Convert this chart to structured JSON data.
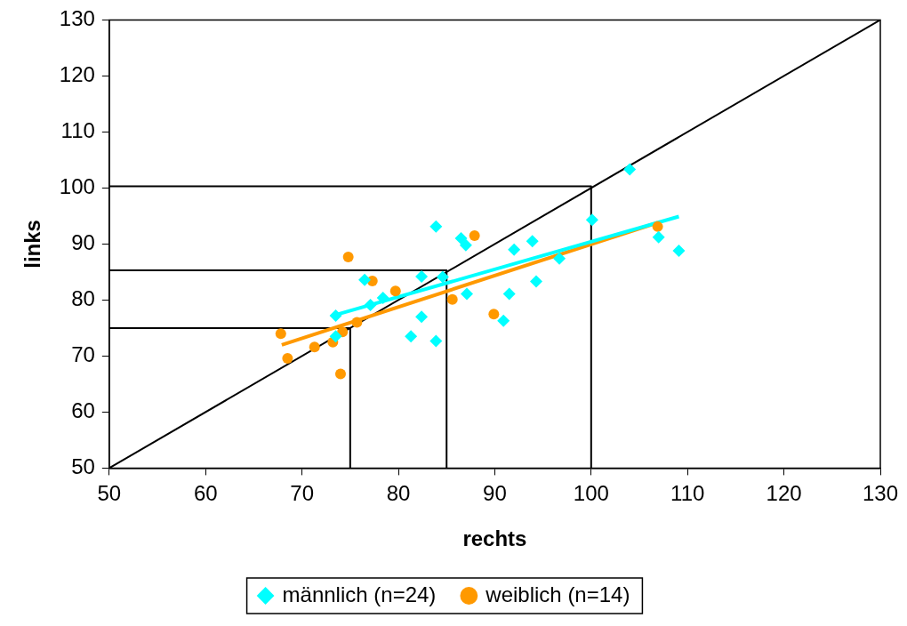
{
  "chart_data": {
    "type": "scatter",
    "xlabel": "rechts",
    "ylabel": "links",
    "xlim": [
      50,
      130
    ],
    "ylim": [
      50,
      130
    ],
    "xticks": [
      50,
      60,
      70,
      80,
      90,
      100,
      110,
      120,
      130
    ],
    "yticks": [
      50,
      60,
      70,
      80,
      90,
      100,
      110,
      120,
      130
    ],
    "grid": false,
    "legend": "bottom",
    "series": [
      {
        "name": "männlich (n=24)",
        "type": "scatter",
        "marker": "diamond",
        "color": "#00ffff",
        "x": [
          73.5,
          73.5,
          76.5,
          77.1,
          78.4,
          82.4,
          82.4,
          81.3,
          83.9,
          83.9,
          86.5,
          87.0,
          84.6,
          87.1,
          90.9,
          91.5,
          92.0,
          93.9,
          94.3,
          96.7,
          100.1,
          104.0,
          107.0,
          109.1
        ],
        "values": [
          77.2,
          73.5,
          83.6,
          79.1,
          80.4,
          84.2,
          77.0,
          73.5,
          72.7,
          93.1,
          91.0,
          89.8,
          84.1,
          81.1,
          76.3,
          81.1,
          89.0,
          90.5,
          83.3,
          87.4,
          94.3,
          103.3,
          91.2,
          88.8
        ]
      },
      {
        "name": "weiblich (n=14)",
        "type": "scatter",
        "marker": "circle",
        "color": "#ff9900",
        "x": [
          67.8,
          68.5,
          71.3,
          73.2,
          74.0,
          74.2,
          75.7,
          74.8,
          77.3,
          79.7,
          85.6,
          87.9,
          89.9,
          106.9
        ],
        "values": [
          74.0,
          69.6,
          71.6,
          72.5,
          66.8,
          74.3,
          76.0,
          87.7,
          83.4,
          81.6,
          80.1,
          91.5,
          77.5,
          93.1
        ]
      },
      {
        "type": "line",
        "color": "#00ffff",
        "x": [
          73.4,
          109.1
        ],
        "values": [
          77.3,
          94.9
        ]
      },
      {
        "type": "line",
        "color": "#ff9900",
        "x": [
          67.9,
          106.9
        ],
        "values": [
          72.0,
          93.8
        ]
      },
      {
        "type": "line",
        "color": "#000000",
        "x": [
          50,
          130
        ],
        "values": [
          50,
          130
        ]
      },
      {
        "type": "line",
        "color": "#000000",
        "x": [
          50,
          75,
          75
        ],
        "values": [
          75,
          75,
          50
        ]
      },
      {
        "type": "line",
        "color": "#000000",
        "x": [
          50,
          85,
          85
        ],
        "values": [
          85.3,
          85.3,
          50
        ]
      },
      {
        "type": "line",
        "color": "#000000",
        "x": [
          50,
          100,
          100
        ],
        "values": [
          100.3,
          100.3,
          50
        ]
      }
    ]
  }
}
